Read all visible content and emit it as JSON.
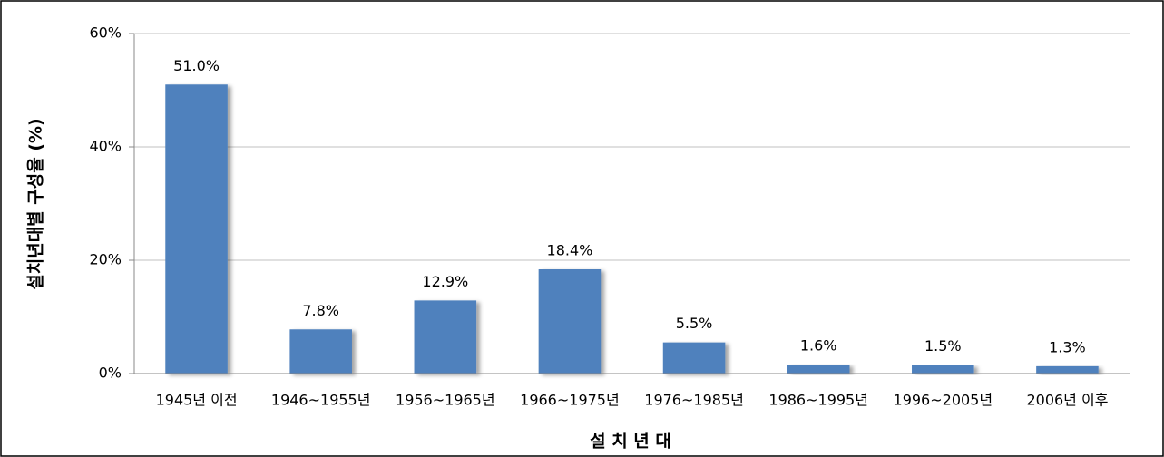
{
  "chart_data": {
    "type": "bar",
    "x_label": "설 치 년 대",
    "y_label": "설치년대별 구성율 (%)",
    "categories": [
      "1945년 이전",
      "1946~1955년",
      "1956~1965년",
      "1966~1975년",
      "1976~1985년",
      "1986~1995년",
      "1996~2005년",
      "2006년 이후"
    ],
    "values": [
      51.0,
      7.8,
      12.9,
      18.4,
      5.5,
      1.6,
      1.5,
      1.3
    ],
    "value_labels": [
      "51.0%",
      "7.8%",
      "12.9%",
      "18.4%",
      "5.5%",
      "1.6%",
      "1.5%",
      "1.3%"
    ],
    "color": "#4f81bd",
    "ylim": [
      0,
      60
    ],
    "yticks": [
      {
        "value": 0,
        "label": "0%"
      },
      {
        "value": 20,
        "label": "20%"
      },
      {
        "value": 40,
        "label": "40%"
      },
      {
        "value": 60,
        "label": "60%"
      }
    ],
    "grid": true
  }
}
